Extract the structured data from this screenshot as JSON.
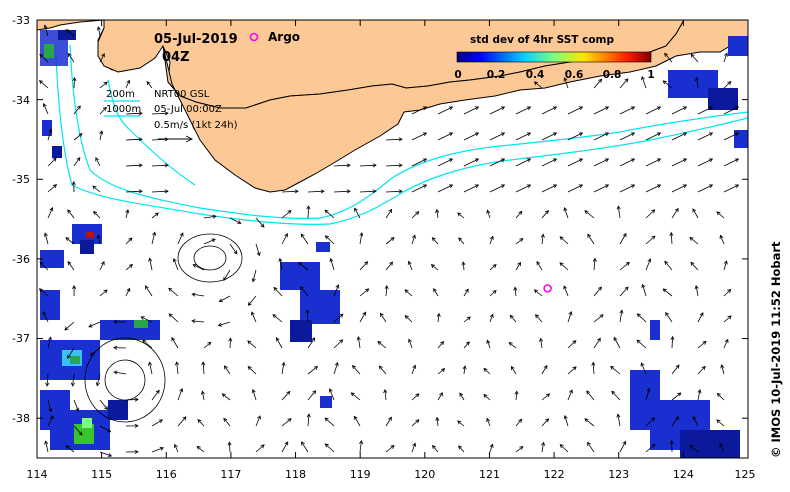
{
  "header": {
    "date": "05-Jul-2019",
    "time": "04Z",
    "argo_label": "Argo"
  },
  "legend": {
    "contour_200": "200m",
    "contour_1000": "1000m",
    "product": "NRT00 GSL",
    "product_time": "05-Jul 00:00Z",
    "vector_scale": "0.5m/s (1kt 24h)"
  },
  "colorbar": {
    "title": "std dev of 4hr SST comp",
    "ticks": [
      "0",
      "0.2",
      "0.4",
      "0.6",
      "0.8",
      "1"
    ],
    "range": [
      0,
      1
    ]
  },
  "axes": {
    "x_ticks": [
      "114",
      "115",
      "116",
      "117",
      "118",
      "119",
      "120",
      "121",
      "122",
      "123",
      "124",
      "125"
    ],
    "y_ticks": [
      "-33",
      "-34",
      "-35",
      "-36",
      "-37",
      "-38"
    ],
    "x_range": [
      114,
      125
    ],
    "y_range": [
      -38.5,
      -33
    ]
  },
  "credit": "© IMOS 10-Jul-2019 11:52 Hobart",
  "argo_floats": [
    {
      "lon": 121.9,
      "lat": -36.37
    }
  ],
  "colors": {
    "land": "#fcc896",
    "contour": "#00e5ee",
    "argo": "#ff00ff",
    "vector": "#000000"
  }
}
